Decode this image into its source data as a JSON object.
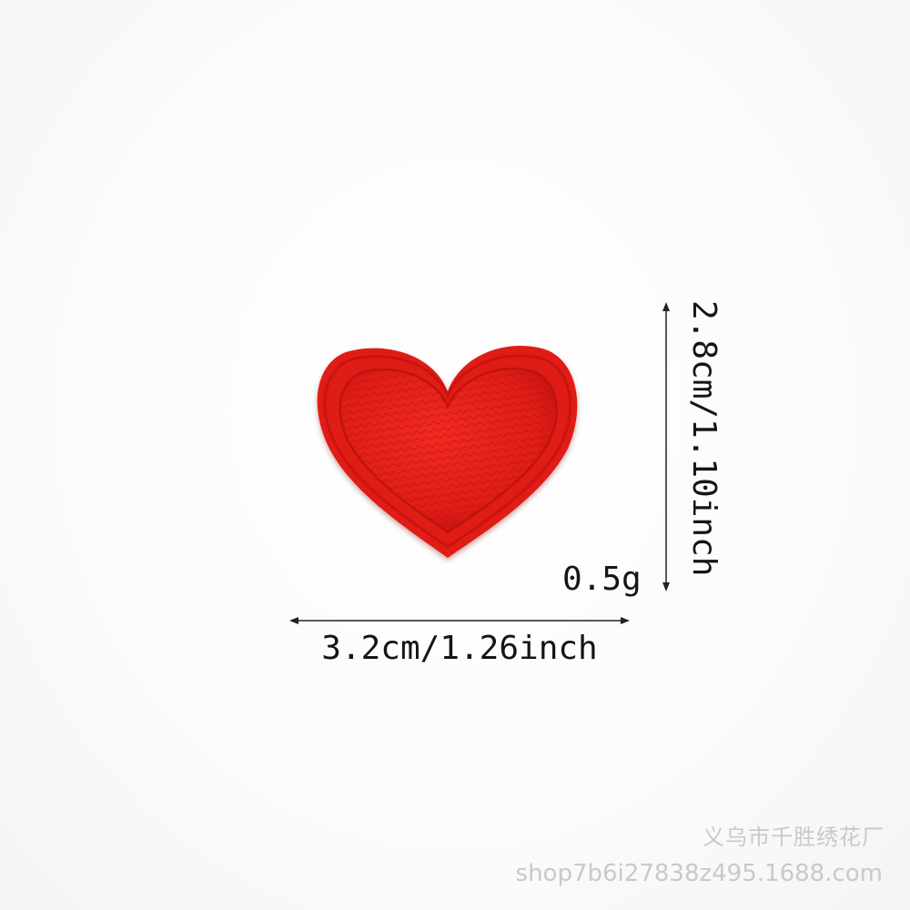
{
  "product": {
    "name": "red heart embroidered patch",
    "color": "#e8231f",
    "dimensions": {
      "width_label": "3.2cm/1.26inch",
      "height_label": "2.8cm/1.10inch",
      "weight_label": "0.5g"
    }
  },
  "watermark": {
    "shop_name": "义乌市千胜绣花厂",
    "url": "shop7b6i27838z495.1688.com"
  }
}
